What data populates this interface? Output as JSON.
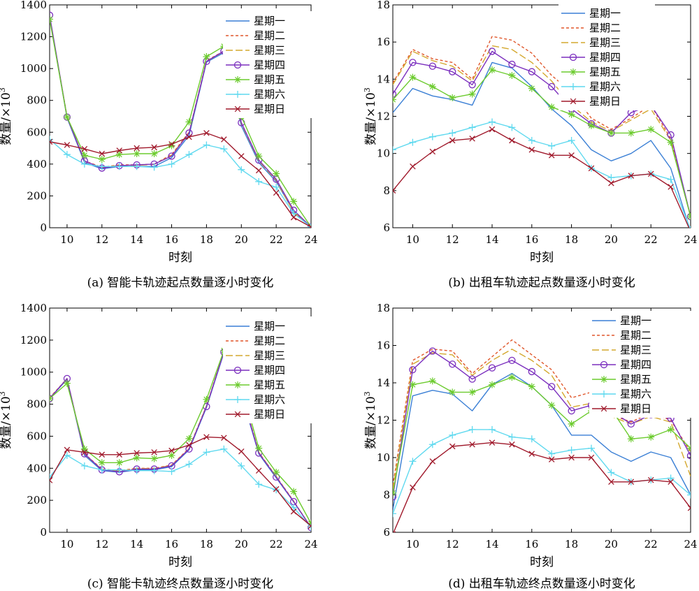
{
  "series_styles": [
    {
      "color": "#3a7fd5",
      "dash": "",
      "marker": "none"
    },
    {
      "color": "#e0572b",
      "dash": "4,3",
      "marker": "none"
    },
    {
      "color": "#d4a82e",
      "dash": "10,4",
      "marker": "none"
    },
    {
      "color": "#7b2fbe",
      "dash": "",
      "marker": "circle"
    },
    {
      "color": "#6ccb2e",
      "dash": "",
      "marker": "star"
    },
    {
      "color": "#5fd9ef",
      "dash": "",
      "marker": "plus"
    },
    {
      "color": "#a01a2c",
      "dash": "",
      "marker": "x"
    }
  ],
  "chart_data": [
    {
      "type": "line",
      "caption": "(a) 智能卡轨迹起点数量逐小时变化",
      "xlabel": "时刻",
      "ylabel": "数量/×10",
      "ylabel_sup": "3",
      "xlim": [
        9,
        24
      ],
      "ylim": [
        0,
        1400
      ],
      "xticks": [
        "10",
        "12",
        "14",
        "16",
        "18",
        "20",
        "22",
        "24"
      ],
      "yticks": [
        "0",
        "200",
        "400",
        "600",
        "800",
        "1000",
        "1200",
        "1400"
      ],
      "legend_position": "top-right",
      "x": [
        9,
        10,
        11,
        12,
        13,
        14,
        15,
        16,
        17,
        18,
        19,
        20,
        21,
        22,
        23,
        24
      ],
      "series": [
        {
          "name": "星期一",
          "values": [
            1320,
            690,
            410,
            370,
            385,
            385,
            385,
            440,
            580,
            1040,
            1100,
            640,
            410,
            290,
            100,
            5
          ]
        },
        {
          "name": "星期二",
          "values": [
            1320,
            700,
            420,
            380,
            395,
            395,
            400,
            460,
            600,
            1050,
            1110,
            660,
            425,
            300,
            100,
            5
          ]
        },
        {
          "name": "星期三",
          "values": [
            1320,
            695,
            418,
            378,
            392,
            392,
            398,
            455,
            595,
            1045,
            1108,
            655,
            420,
            298,
            98,
            5
          ]
        },
        {
          "name": "星期四",
          "values": [
            1335,
            695,
            420,
            375,
            390,
            395,
            400,
            450,
            595,
            1045,
            1110,
            660,
            425,
            305,
            110,
            5
          ]
        },
        {
          "name": "星期五",
          "values": [
            1310,
            695,
            455,
            430,
            460,
            465,
            465,
            515,
            665,
            1075,
            1140,
            700,
            450,
            340,
            165,
            5
          ]
        },
        {
          "name": "星期六",
          "values": [
            555,
            460,
            400,
            385,
            385,
            385,
            380,
            400,
            460,
            520,
            495,
            365,
            290,
            255,
            90,
            5
          ]
        },
        {
          "name": "星期日",
          "values": [
            540,
            520,
            495,
            465,
            485,
            500,
            505,
            525,
            570,
            595,
            555,
            450,
            360,
            220,
            65,
            5
          ]
        }
      ]
    },
    {
      "type": "line",
      "caption": "(b) 出租车轨迹起点数量逐小时变化",
      "xlabel": "时刻",
      "ylabel": "数量/×10",
      "ylabel_sup": "3",
      "xlim": [
        9,
        24
      ],
      "ylim": [
        6,
        18
      ],
      "xticks": [
        "10",
        "12",
        "14",
        "16",
        "18",
        "20",
        "22",
        "24"
      ],
      "yticks": [
        "6",
        "8",
        "10",
        "12",
        "14",
        "16",
        "18"
      ],
      "legend_position": "top-right",
      "x": [
        9,
        10,
        11,
        12,
        13,
        14,
        15,
        16,
        17,
        18,
        19,
        20,
        21,
        22,
        23,
        24
      ],
      "series": [
        {
          "name": "星期一",
          "values": [
            12.2,
            13.5,
            13.1,
            12.9,
            12.6,
            14.9,
            14.6,
            13.6,
            12.4,
            11.5,
            10.2,
            9.6,
            10.0,
            10.7,
            9.2,
            5.8
          ]
        },
        {
          "name": "星期二",
          "values": [
            13.8,
            15.6,
            15.1,
            14.9,
            14.0,
            16.3,
            16.1,
            15.4,
            14.2,
            13.3,
            11.9,
            11.3,
            11.9,
            12.6,
            10.8,
            6.6
          ]
        },
        {
          "name": "星期三",
          "values": [
            13.7,
            15.5,
            15.0,
            14.7,
            13.9,
            15.8,
            15.6,
            14.9,
            13.9,
            12.6,
            11.7,
            11.2,
            11.8,
            12.4,
            10.7,
            6.6
          ]
        },
        {
          "name": "星期四",
          "values": [
            13.2,
            14.9,
            14.7,
            14.4,
            13.7,
            15.5,
            14.8,
            14.4,
            13.6,
            12.4,
            11.6,
            11.1,
            12.2,
            12.6,
            11.0,
            6.6
          ]
        },
        {
          "name": "星期五",
          "values": [
            12.9,
            14.1,
            13.6,
            13.0,
            13.2,
            14.5,
            14.2,
            13.5,
            12.5,
            12.1,
            11.5,
            11.1,
            11.1,
            11.3,
            10.6,
            6.6
          ]
        },
        {
          "name": "星期六",
          "values": [
            10.2,
            10.6,
            10.9,
            11.1,
            11.4,
            11.7,
            11.4,
            10.7,
            10.4,
            10.7,
            9.2,
            8.7,
            8.8,
            8.9,
            8.6,
            5.9
          ]
        },
        {
          "name": "星期日",
          "values": [
            8.0,
            9.3,
            10.1,
            10.7,
            10.8,
            11.3,
            10.7,
            10.2,
            9.9,
            9.9,
            9.2,
            8.4,
            8.8,
            8.9,
            8.2,
            5.8
          ]
        }
      ]
    },
    {
      "type": "line",
      "caption": "(c) 智能卡轨迹终点数量逐小时变化",
      "xlabel": "时刻",
      "ylabel": "数量/×10",
      "ylabel_sup": "3",
      "xlim": [
        9,
        24
      ],
      "ylim": [
        0,
        1400
      ],
      "xticks": [
        "10",
        "12",
        "14",
        "16",
        "18",
        "20",
        "22",
        "24"
      ],
      "yticks": [
        "0",
        "200",
        "400",
        "600",
        "800",
        "1000",
        "1200",
        "1400"
      ],
      "legend_position": "top-right",
      "x": [
        9,
        10,
        11,
        12,
        13,
        14,
        15,
        16,
        17,
        18,
        19,
        20,
        21,
        22,
        23,
        24
      ],
      "series": [
        {
          "name": "星期一",
          "values": [
            835,
            955,
            480,
            385,
            375,
            390,
            390,
            410,
            515,
            780,
            1120,
            860,
            490,
            340,
            190,
            30
          ]
        },
        {
          "name": "星期二",
          "values": [
            840,
            960,
            490,
            395,
            385,
            400,
            400,
            420,
            525,
            790,
            1130,
            880,
            500,
            350,
            195,
            30
          ]
        },
        {
          "name": "星期三",
          "values": [
            838,
            958,
            488,
            392,
            382,
            398,
            398,
            418,
            522,
            788,
            1128,
            875,
            498,
            348,
            193,
            30
          ]
        },
        {
          "name": "星期四",
          "values": [
            835,
            960,
            490,
            390,
            378,
            395,
            395,
            415,
            520,
            785,
            1125,
            870,
            495,
            345,
            192,
            30
          ]
        },
        {
          "name": "星期五",
          "values": [
            835,
            930,
            520,
            435,
            435,
            465,
            460,
            480,
            585,
            830,
            1135,
            915,
            525,
            375,
            255,
            55
          ]
        },
        {
          "name": "星期六",
          "values": [
            345,
            480,
            415,
            390,
            390,
            385,
            385,
            380,
            425,
            500,
            520,
            415,
            300,
            265,
            155,
            30
          ]
        },
        {
          "name": "星期日",
          "values": [
            325,
            515,
            500,
            485,
            485,
            495,
            500,
            510,
            545,
            595,
            590,
            505,
            385,
            270,
            130,
            40
          ]
        }
      ]
    },
    {
      "type": "line",
      "caption": "(d) 出租车轨迹终点数量逐小时变化",
      "xlabel": "时刻",
      "ylabel": "数量/×10",
      "ylabel_sup": "3",
      "xlim": [
        9,
        24
      ],
      "ylim": [
        6,
        18
      ],
      "xticks": [
        "10",
        "12",
        "14",
        "16",
        "18",
        "20",
        "22",
        "24"
      ],
      "yticks": [
        "6",
        "8",
        "10",
        "12",
        "14",
        "16",
        "18"
      ],
      "legend_position": "top-right",
      "x": [
        9,
        10,
        11,
        12,
        13,
        14,
        15,
        16,
        17,
        18,
        19,
        20,
        21,
        22,
        23,
        24
      ],
      "series": [
        {
          "name": "星期一",
          "values": [
            7.2,
            13.3,
            13.6,
            13.4,
            12.5,
            13.9,
            14.5,
            13.8,
            12.8,
            11.2,
            11.2,
            10.3,
            9.8,
            10.3,
            10.0,
            8.0
          ]
        },
        {
          "name": "星期二",
          "values": [
            8.5,
            15.2,
            15.8,
            15.7,
            14.5,
            15.4,
            16.3,
            15.5,
            14.7,
            13.2,
            13.5,
            12.3,
            11.9,
            12.4,
            12.0,
            10.3
          ]
        },
        {
          "name": "星期三",
          "values": [
            8.3,
            15.0,
            15.6,
            15.5,
            14.4,
            15.2,
            15.8,
            15.2,
            14.4,
            12.7,
            12.9,
            12.2,
            11.8,
            12.2,
            11.9,
            9.0
          ]
        },
        {
          "name": "星期四",
          "values": [
            7.9,
            14.7,
            15.7,
            15.0,
            14.2,
            14.8,
            15.2,
            14.6,
            13.8,
            12.5,
            12.8,
            12.5,
            11.8,
            12.3,
            12.1,
            10.1
          ]
        },
        {
          "name": "星期五",
          "values": [
            8.1,
            13.9,
            14.1,
            13.5,
            13.5,
            13.9,
            14.3,
            13.8,
            12.8,
            11.8,
            12.5,
            12.6,
            11.0,
            11.1,
            11.5,
            10.5
          ]
        },
        {
          "name": "星期六",
          "values": [
            7.0,
            9.8,
            10.7,
            11.2,
            11.5,
            11.5,
            11.1,
            11.0,
            10.2,
            10.4,
            10.5,
            9.2,
            8.7,
            8.8,
            8.9,
            8.0
          ]
        },
        {
          "name": "星期日",
          "values": [
            5.9,
            8.4,
            9.8,
            10.6,
            10.7,
            10.8,
            10.7,
            10.2,
            9.9,
            10.0,
            10.0,
            8.7,
            8.7,
            8.8,
            8.7,
            7.3
          ]
        }
      ]
    }
  ]
}
